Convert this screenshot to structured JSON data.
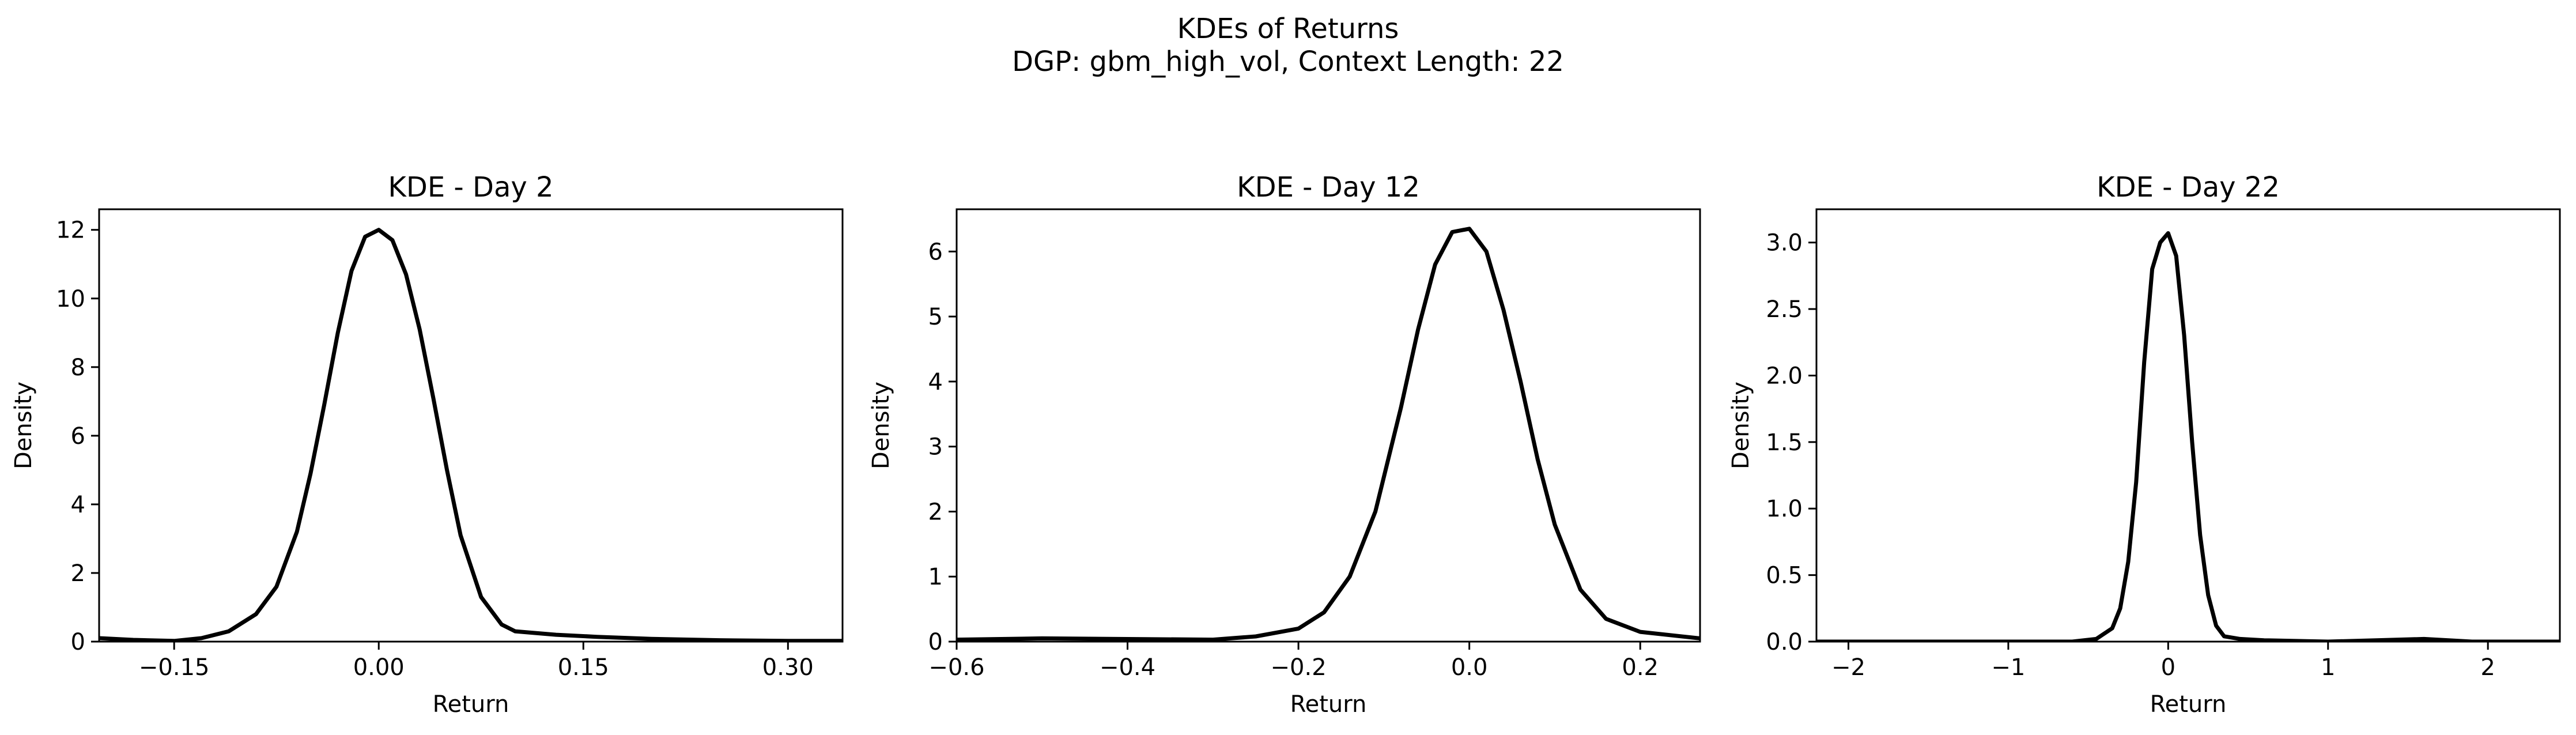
{
  "figure": {
    "title": "KDEs of Returns",
    "subtitle": "DGP: gbm_high_vol, Context Length: 22"
  },
  "colors": {
    "line": "#000000",
    "axes": "#000000",
    "background": "#ffffff"
  },
  "chart_data": [
    {
      "type": "line",
      "title": "KDE - Day 2",
      "xlabel": "Return",
      "ylabel": "Density",
      "xlim": [
        -0.205,
        0.34
      ],
      "ylim": [
        0,
        12.6
      ],
      "xticks": [
        -0.15,
        0.0,
        0.15,
        0.3
      ],
      "xtick_labels": [
        "−0.15",
        "0.00",
        "0.15",
        "0.30"
      ],
      "yticks": [
        0,
        2,
        4,
        6,
        8,
        10,
        12
      ],
      "ytick_labels": [
        "0",
        "2",
        "4",
        "6",
        "8",
        "10",
        "12"
      ],
      "grid": false,
      "series": [
        {
          "x": [
            -0.205,
            -0.18,
            -0.15,
            -0.13,
            -0.11,
            -0.09,
            -0.075,
            -0.06,
            -0.05,
            -0.04,
            -0.03,
            -0.02,
            -0.01,
            0.0,
            0.01,
            0.02,
            0.03,
            0.04,
            0.05,
            0.06,
            0.075,
            0.09,
            0.1,
            0.13,
            0.16,
            0.2,
            0.25,
            0.3,
            0.34
          ],
          "y": [
            0.1,
            0.05,
            0.02,
            0.1,
            0.3,
            0.8,
            1.6,
            3.2,
            4.9,
            6.9,
            9.0,
            10.8,
            11.8,
            12.0,
            11.7,
            10.7,
            9.1,
            7.1,
            5.0,
            3.1,
            1.3,
            0.5,
            0.3,
            0.2,
            0.14,
            0.08,
            0.04,
            0.02,
            0.02
          ]
        }
      ]
    },
    {
      "type": "line",
      "title": "KDE - Day 12",
      "xlabel": "Return",
      "ylabel": "Density",
      "xlim": [
        -0.6,
        0.27
      ],
      "ylim": [
        0,
        6.65
      ],
      "xticks": [
        -0.6,
        -0.4,
        -0.2,
        0.0,
        0.2
      ],
      "xtick_labels": [
        "−0.6",
        "−0.4",
        "−0.2",
        "0.0",
        "0.2"
      ],
      "yticks": [
        0,
        1,
        2,
        3,
        4,
        5,
        6
      ],
      "ytick_labels": [
        "0",
        "1",
        "2",
        "3",
        "4",
        "5",
        "6"
      ],
      "grid": false,
      "series": [
        {
          "x": [
            -0.6,
            -0.5,
            -0.4,
            -0.3,
            -0.25,
            -0.2,
            -0.17,
            -0.14,
            -0.11,
            -0.08,
            -0.06,
            -0.04,
            -0.02,
            0.0,
            0.02,
            0.04,
            0.06,
            0.08,
            0.1,
            0.13,
            0.16,
            0.2,
            0.27
          ],
          "y": [
            0.03,
            0.05,
            0.04,
            0.03,
            0.08,
            0.2,
            0.45,
            1.0,
            2.0,
            3.6,
            4.8,
            5.8,
            6.3,
            6.35,
            6.0,
            5.1,
            4.0,
            2.8,
            1.8,
            0.8,
            0.35,
            0.15,
            0.05
          ]
        }
      ]
    },
    {
      "type": "line",
      "title": "KDE - Day 22",
      "xlabel": "Return",
      "ylabel": "Density",
      "xlim": [
        -2.2,
        2.45
      ],
      "ylim": [
        0,
        3.25
      ],
      "xticks": [
        -2,
        -1,
        0,
        1,
        2
      ],
      "xtick_labels": [
        "−2",
        "−1",
        "0",
        "1",
        "2"
      ],
      "yticks": [
        0.0,
        0.5,
        1.0,
        1.5,
        2.0,
        2.5,
        3.0
      ],
      "ytick_labels": [
        "0.0",
        "0.5",
        "1.0",
        "1.5",
        "2.0",
        "2.5",
        "3.0"
      ],
      "grid": false,
      "series": [
        {
          "x": [
            -2.2,
            -1.5,
            -1.0,
            -0.6,
            -0.45,
            -0.35,
            -0.3,
            -0.25,
            -0.2,
            -0.15,
            -0.1,
            -0.05,
            0.0,
            0.05,
            0.1,
            0.15,
            0.2,
            0.25,
            0.3,
            0.35,
            0.45,
            0.6,
            1.0,
            1.3,
            1.6,
            1.9,
            2.45
          ],
          "y": [
            0.0,
            0.0,
            0.0,
            0.0,
            0.02,
            0.1,
            0.25,
            0.6,
            1.2,
            2.1,
            2.8,
            3.0,
            3.07,
            2.9,
            2.3,
            1.5,
            0.8,
            0.35,
            0.12,
            0.04,
            0.02,
            0.01,
            0.0,
            0.01,
            0.02,
            0.0,
            0.0
          ]
        }
      ]
    }
  ]
}
